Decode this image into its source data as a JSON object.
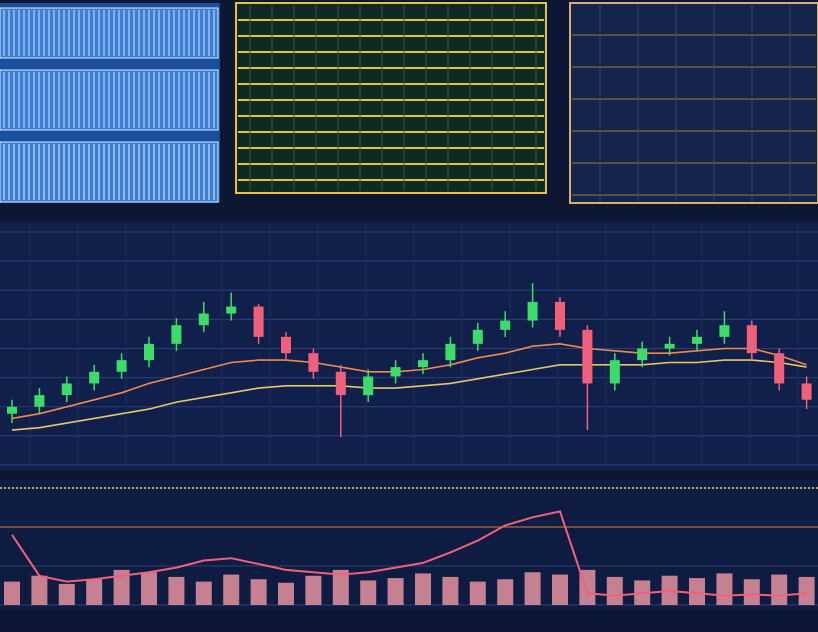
{
  "chart_data": [
    {
      "type": "candlestick",
      "grid": true,
      "ylim": [
        0,
        100
      ],
      "up_color": "#3ddc6a",
      "down_color": "#f0607a",
      "open": [
        22,
        25,
        30,
        35,
        40,
        45,
        52,
        60,
        65,
        68,
        55,
        48,
        40,
        30,
        38,
        42,
        45,
        52,
        58,
        62,
        70,
        58,
        35,
        45,
        50,
        52,
        55,
        60,
        48,
        35
      ],
      "close": [
        25,
        30,
        35,
        40,
        45,
        52,
        60,
        65,
        68,
        55,
        48,
        40,
        30,
        38,
        42,
        45,
        52,
        58,
        62,
        70,
        58,
        35,
        45,
        50,
        52,
        55,
        60,
        48,
        35,
        28
      ],
      "high": [
        28,
        33,
        38,
        43,
        48,
        55,
        63,
        70,
        74,
        69,
        57,
        50,
        43,
        41,
        45,
        48,
        55,
        61,
        66,
        78,
        72,
        60,
        48,
        53,
        55,
        58,
        66,
        62,
        50,
        38
      ],
      "low": [
        18,
        22,
        27,
        32,
        37,
        42,
        49,
        57,
        62,
        52,
        45,
        37,
        12,
        27,
        35,
        39,
        42,
        49,
        55,
        59,
        55,
        15,
        32,
        42,
        47,
        49,
        52,
        45,
        32,
        24
      ],
      "lines": [
        {
          "color": "#f08a4b",
          "values": [
            20,
            22,
            25,
            28,
            31,
            35,
            38,
            41,
            44,
            45,
            45,
            44,
            42,
            40,
            40,
            41,
            43,
            46,
            48,
            51,
            52,
            50,
            49,
            48,
            48,
            49,
            50,
            50,
            47,
            43
          ]
        },
        {
          "color": "#e8c766",
          "values": [
            15,
            16,
            18,
            20,
            22,
            24,
            27,
            29,
            31,
            33,
            34,
            34,
            34,
            33,
            33,
            34,
            35,
            37,
            39,
            41,
            43,
            43,
            43,
            43,
            44,
            44,
            45,
            45,
            44,
            42
          ]
        }
      ]
    },
    {
      "type": "line",
      "grid": true,
      "ylim": [
        0,
        100
      ],
      "color": "#f0607a",
      "values": [
        60,
        25,
        20,
        22,
        25,
        28,
        32,
        38,
        40,
        35,
        30,
        28,
        26,
        28,
        32,
        36,
        45,
        55,
        68,
        75,
        80,
        10,
        8,
        10,
        12,
        10,
        8,
        9,
        8,
        10
      ],
      "volume": {
        "color": "#f29aa6",
        "values": [
          20,
          25,
          18,
          22,
          30,
          28,
          24,
          20,
          26,
          22,
          19,
          25,
          30,
          21,
          23,
          27,
          24,
          20,
          22,
          28,
          26,
          30,
          24,
          21,
          25,
          23,
          27,
          22,
          26,
          24
        ]
      }
    }
  ]
}
